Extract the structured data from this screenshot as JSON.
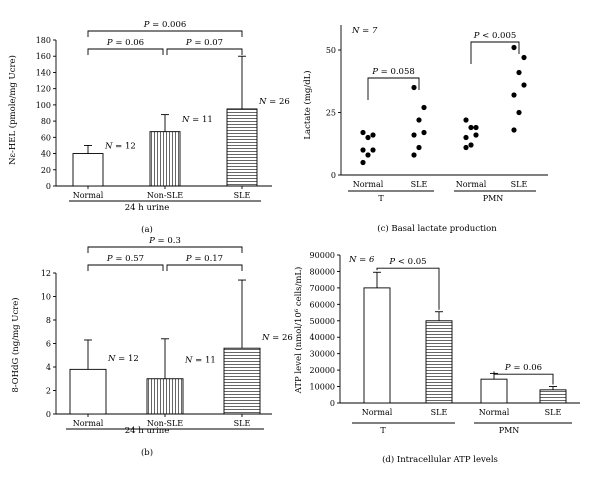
{
  "chart_data": [
    {
      "panel": "a",
      "type": "bar",
      "caption": "(a)",
      "ylabel": "Nε-HEL (pmole/mg Ucre)",
      "xgroup_label": "24 h urine",
      "ylim": [
        0,
        180
      ],
      "yticks": [
        "0",
        "20",
        "40",
        "60",
        "80",
        "100",
        "120",
        "140",
        "160",
        "180"
      ],
      "categories": [
        "Normal",
        "Non-SLE",
        "SLE"
      ],
      "values": [
        40,
        67,
        95
      ],
      "errors": [
        10,
        21,
        65
      ],
      "patterns": [
        "none",
        "vertical",
        "horizontal"
      ],
      "n_labels": [
        "N = 12",
        "N = 11",
        "N = 26"
      ],
      "brackets": [
        {
          "from": 0,
          "to": 1,
          "label": "P = 0.06",
          "level": 1
        },
        {
          "from": 1,
          "to": 2,
          "label": "P = 0.07",
          "level": 1
        },
        {
          "from": 0,
          "to": 2,
          "label": "P = 0.006",
          "level": 2
        }
      ]
    },
    {
      "panel": "b",
      "type": "bar",
      "caption": "(b)",
      "ylabel": "8-OHdG (ng/mg Ucre)",
      "xgroup_label": "24 h urine",
      "ylim": [
        0,
        12
      ],
      "yticks": [
        "0",
        "2",
        "4",
        "6",
        "8",
        "10",
        "12"
      ],
      "categories": [
        "Normal",
        "Non-SLE",
        "SLE"
      ],
      "values": [
        3.8,
        3.0,
        5.6
      ],
      "errors": [
        2.5,
        3.4,
        5.8
      ],
      "patterns": [
        "none",
        "vertical",
        "horizontal"
      ],
      "n_labels": [
        "N = 12",
        "N = 11",
        "N = 26"
      ],
      "brackets": [
        {
          "from": 0,
          "to": 1,
          "label": "P = 0.57",
          "level": 1
        },
        {
          "from": 1,
          "to": 2,
          "label": "P = 0.17",
          "level": 1
        },
        {
          "from": 0,
          "to": 2,
          "label": "P = 0.3",
          "level": 2
        }
      ]
    },
    {
      "panel": "c",
      "type": "scatter",
      "caption": "(c) Basal lactate production",
      "ylabel": "Lactate (mg/dL)",
      "ylim": [
        0,
        60
      ],
      "yticks": [
        "0",
        "25",
        "50"
      ],
      "n_label": "N = 7",
      "categories": [
        "Normal",
        "SLE",
        "Normal",
        "SLE"
      ],
      "groups": [
        "T",
        "PMN"
      ],
      "points": [
        [
          17,
          16,
          15,
          10,
          10,
          8,
          5
        ],
        [
          35,
          27,
          22,
          17,
          16,
          11,
          8
        ],
        [
          22,
          19,
          19,
          16,
          15,
          12,
          11
        ],
        [
          51,
          47,
          41,
          36,
          32,
          25,
          18
        ]
      ],
      "brackets": [
        {
          "from": 0,
          "to": 1,
          "label": "P = 0.058"
        },
        {
          "from": 2,
          "to": 3,
          "label": "P < 0.005"
        }
      ]
    },
    {
      "panel": "d",
      "type": "bar",
      "caption": "(d) Intracellular ATP levels",
      "ylabel": "ATP level (nmol/10⁶ cells/mL)",
      "ylim": [
        0,
        90000
      ],
      "yticks": [
        "0",
        "10000",
        "20000",
        "30000",
        "40000",
        "50000",
        "60000",
        "70000",
        "80000",
        "90000"
      ],
      "n_label": "N = 6",
      "categories": [
        "Normal",
        "SLE",
        "Normal",
        "SLE"
      ],
      "groups": [
        "T",
        "PMN"
      ],
      "values": [
        70000,
        50000,
        14500,
        8000
      ],
      "errors": [
        9500,
        5500,
        3500,
        2000
      ],
      "patterns": [
        "none",
        "horizontal",
        "none",
        "horizontal"
      ],
      "brackets": [
        {
          "from": 0,
          "to": 1,
          "label": "P < 0.05"
        },
        {
          "from": 2,
          "to": 3,
          "label": "P = 0.06"
        }
      ]
    }
  ]
}
